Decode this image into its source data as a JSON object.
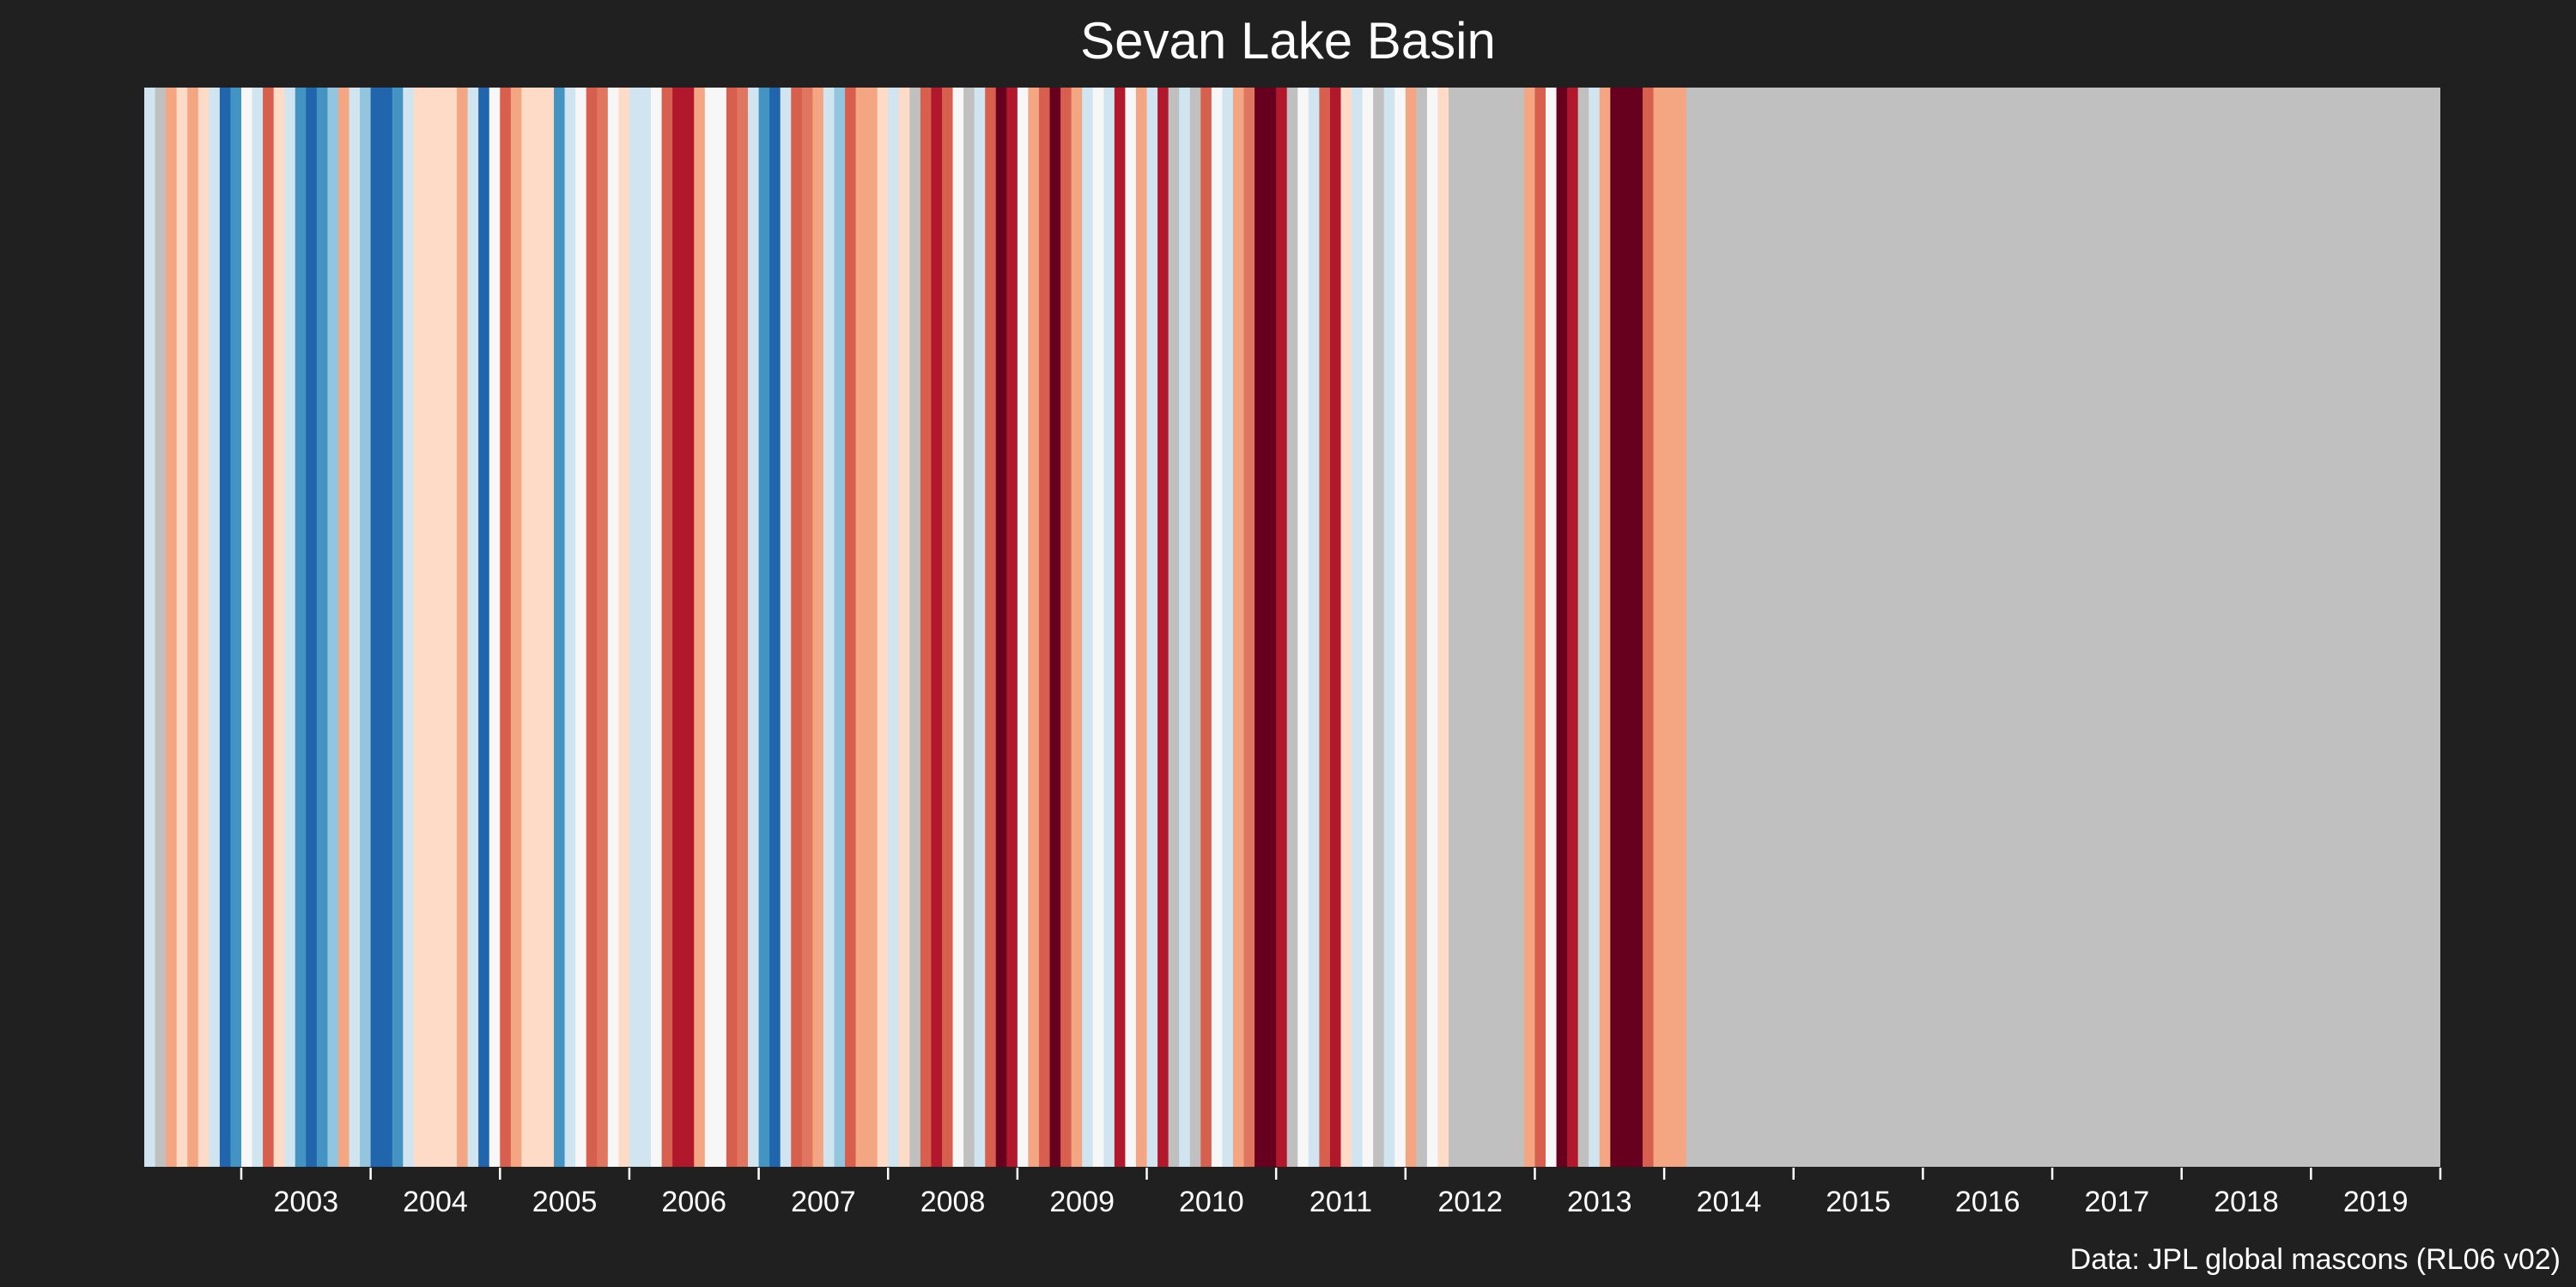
{
  "chart_data": {
    "type": "heatmap",
    "title": "Sevan Lake Basin",
    "xlabel": "",
    "ylabel": "",
    "x_range": [
      "2002-04",
      "2020-01"
    ],
    "x_ticks": [
      "2003",
      "2004",
      "2005",
      "2006",
      "2007",
      "2008",
      "2009",
      "2010",
      "2011",
      "2012",
      "2013",
      "2014",
      "2015",
      "2016",
      "2017",
      "2018",
      "2019"
    ],
    "grid": false,
    "legend": "none",
    "colormap": "RdBu (blue = positive anomaly, red = negative anomaly, grey = no data)",
    "stripes": [
      {
        "date": "2002-04",
        "color": "#d1e5f0"
      },
      {
        "date": "2002-05",
        "color": "#c0c0c0"
      },
      {
        "date": "2002-06",
        "color": "#f4a582"
      },
      {
        "date": "2002-07",
        "color": "#fddbc7"
      },
      {
        "date": "2002-08",
        "color": "#f4a582"
      },
      {
        "date": "2002-09",
        "color": "#fddbc7"
      },
      {
        "date": "2002-10",
        "color": "#d1e5f0"
      },
      {
        "date": "2002-11",
        "color": "#2166ac"
      },
      {
        "date": "2002-12",
        "color": "#4393c3"
      },
      {
        "date": "2003-01",
        "color": "#f7f7f7"
      },
      {
        "date": "2003-02",
        "color": "#d1e5f0"
      },
      {
        "date": "2003-03",
        "color": "#d6604d"
      },
      {
        "date": "2003-04",
        "color": "#fddbc7"
      },
      {
        "date": "2003-05",
        "color": "#d1e5f0"
      },
      {
        "date": "2003-06",
        "color": "#4393c3"
      },
      {
        "date": "2003-07",
        "color": "#2166ac"
      },
      {
        "date": "2003-08",
        "color": "#4393c3"
      },
      {
        "date": "2003-09",
        "color": "#92c5de"
      },
      {
        "date": "2003-10",
        "color": "#f4a582"
      },
      {
        "date": "2003-11",
        "color": "#d1e5f0"
      },
      {
        "date": "2003-12",
        "color": "#92c5de"
      },
      {
        "date": "2004-01",
        "color": "#2166ac"
      },
      {
        "date": "2004-02",
        "color": "#2166ac"
      },
      {
        "date": "2004-03",
        "color": "#4393c3"
      },
      {
        "date": "2004-04",
        "color": "#d1e5f0"
      },
      {
        "date": "2004-05",
        "color": "#fddbc7"
      },
      {
        "date": "2004-06",
        "color": "#fddbc7"
      },
      {
        "date": "2004-07",
        "color": "#fddbc7"
      },
      {
        "date": "2004-08",
        "color": "#fddbc7"
      },
      {
        "date": "2004-09",
        "color": "#f4a582"
      },
      {
        "date": "2004-10",
        "color": "#d1e5f0"
      },
      {
        "date": "2004-11",
        "color": "#2166ac"
      },
      {
        "date": "2004-12",
        "color": "#f7f7f7"
      },
      {
        "date": "2005-01",
        "color": "#d6604d"
      },
      {
        "date": "2005-02",
        "color": "#f4a582"
      },
      {
        "date": "2005-03",
        "color": "#fddbc7"
      },
      {
        "date": "2005-04",
        "color": "#fddbc7"
      },
      {
        "date": "2005-05",
        "color": "#fddbc7"
      },
      {
        "date": "2005-06",
        "color": "#4393c3"
      },
      {
        "date": "2005-07",
        "color": "#d1e5f0"
      },
      {
        "date": "2005-08",
        "color": "#f7f7f7"
      },
      {
        "date": "2005-09",
        "color": "#d6604d"
      },
      {
        "date": "2005-10",
        "color": "#e0765f"
      },
      {
        "date": "2005-11",
        "color": "#f7f7f7"
      },
      {
        "date": "2005-12",
        "color": "#fddbc7"
      },
      {
        "date": "2006-01",
        "color": "#d1e5f0"
      },
      {
        "date": "2006-02",
        "color": "#d1e5f0"
      },
      {
        "date": "2006-03",
        "color": "#f7f7f7"
      },
      {
        "date": "2006-04",
        "color": "#d6604d"
      },
      {
        "date": "2006-05",
        "color": "#b2182b"
      },
      {
        "date": "2006-06",
        "color": "#b2182b"
      },
      {
        "date": "2006-07",
        "color": "#f4a582"
      },
      {
        "date": "2006-08",
        "color": "#f7f7f7"
      },
      {
        "date": "2006-09",
        "color": "#f7f7f7"
      },
      {
        "date": "2006-10",
        "color": "#d6604d"
      },
      {
        "date": "2006-11",
        "color": "#e0765f"
      },
      {
        "date": "2006-12",
        "color": "#d1e5f0"
      },
      {
        "date": "2007-01",
        "color": "#4393c3"
      },
      {
        "date": "2007-02",
        "color": "#2166ac"
      },
      {
        "date": "2007-03",
        "color": "#d1e5f0"
      },
      {
        "date": "2007-04",
        "color": "#d6604d"
      },
      {
        "date": "2007-05",
        "color": "#e0765f"
      },
      {
        "date": "2007-06",
        "color": "#f4a582"
      },
      {
        "date": "2007-07",
        "color": "#d1e5f0"
      },
      {
        "date": "2007-08",
        "color": "#92c5de"
      },
      {
        "date": "2007-09",
        "color": "#d6604d"
      },
      {
        "date": "2007-10",
        "color": "#f4a582"
      },
      {
        "date": "2007-11",
        "color": "#f4a582"
      },
      {
        "date": "2007-12",
        "color": "#fddbc7"
      },
      {
        "date": "2008-01",
        "color": "#d1e5f0"
      },
      {
        "date": "2008-02",
        "color": "#fddbc7"
      },
      {
        "date": "2008-03",
        "color": "#c0c0c0"
      },
      {
        "date": "2008-04",
        "color": "#d6604d"
      },
      {
        "date": "2008-05",
        "color": "#b2182b"
      },
      {
        "date": "2008-06",
        "color": "#d6604d"
      },
      {
        "date": "2008-07",
        "color": "#f7f7f7"
      },
      {
        "date": "2008-08",
        "color": "#c0c0c0"
      },
      {
        "date": "2008-09",
        "color": "#d1e5f0"
      },
      {
        "date": "2008-10",
        "color": "#d6604d"
      },
      {
        "date": "2008-11",
        "color": "#67001f"
      },
      {
        "date": "2008-12",
        "color": "#b2182b"
      },
      {
        "date": "2009-01",
        "color": "#f7f7f7"
      },
      {
        "date": "2009-02",
        "color": "#f4a582"
      },
      {
        "date": "2009-03",
        "color": "#d6604d"
      },
      {
        "date": "2009-04",
        "color": "#67001f"
      },
      {
        "date": "2009-05",
        "color": "#d6604d"
      },
      {
        "date": "2009-06",
        "color": "#f4a582"
      },
      {
        "date": "2009-07",
        "color": "#d1e5f0"
      },
      {
        "date": "2009-08",
        "color": "#f7f7f7"
      },
      {
        "date": "2009-09",
        "color": "#d1e5f0"
      },
      {
        "date": "2009-10",
        "color": "#b2182b"
      },
      {
        "date": "2009-11",
        "color": "#f7f7f7"
      },
      {
        "date": "2009-12",
        "color": "#f4a582"
      },
      {
        "date": "2010-01",
        "color": "#d1e5f0"
      },
      {
        "date": "2010-02",
        "color": "#b2182b"
      },
      {
        "date": "2010-03",
        "color": "#c0c0c0"
      },
      {
        "date": "2010-04",
        "color": "#d1e5f0"
      },
      {
        "date": "2010-05",
        "color": "#c0c0c0"
      },
      {
        "date": "2010-06",
        "color": "#d6604d"
      },
      {
        "date": "2010-07",
        "color": "#f7f7f7"
      },
      {
        "date": "2010-08",
        "color": "#d1e5f0"
      },
      {
        "date": "2010-09",
        "color": "#f4a582"
      },
      {
        "date": "2010-10",
        "color": "#e0765f"
      },
      {
        "date": "2010-11",
        "color": "#67001f"
      },
      {
        "date": "2010-12",
        "color": "#67001f"
      },
      {
        "date": "2011-01",
        "color": "#b2182b"
      },
      {
        "date": "2011-02",
        "color": "#c0c0c0"
      },
      {
        "date": "2011-03",
        "color": "#f7f7f7"
      },
      {
        "date": "2011-04",
        "color": "#d1e5f0"
      },
      {
        "date": "2011-05",
        "color": "#d6604d"
      },
      {
        "date": "2011-06",
        "color": "#b2182b"
      },
      {
        "date": "2011-07",
        "color": "#fddbc7"
      },
      {
        "date": "2011-08",
        "color": "#d1e5f0"
      },
      {
        "date": "2011-09",
        "color": "#f7f7f7"
      },
      {
        "date": "2011-10",
        "color": "#c0c0c0"
      },
      {
        "date": "2011-11",
        "color": "#d1e5f0"
      },
      {
        "date": "2011-12",
        "color": "#f7f7f7"
      },
      {
        "date": "2012-01",
        "color": "#f4a582"
      },
      {
        "date": "2012-02",
        "color": "#c0c0c0"
      },
      {
        "date": "2012-03",
        "color": "#f7f7f7"
      },
      {
        "date": "2012-04",
        "color": "#fddbc7"
      },
      {
        "date": "2012-05",
        "color": "#c0c0c0"
      },
      {
        "date": "2012-06",
        "color": "#c0c0c0"
      },
      {
        "date": "2012-07",
        "color": "#c0c0c0"
      },
      {
        "date": "2012-08",
        "color": "#c0c0c0"
      },
      {
        "date": "2012-09",
        "color": "#c0c0c0"
      },
      {
        "date": "2012-10",
        "color": "#c0c0c0"
      },
      {
        "date": "2012-11",
        "color": "#c0c0c0"
      },
      {
        "date": "2012-12",
        "color": "#f4a582"
      },
      {
        "date": "2013-01",
        "color": "#d6604d"
      },
      {
        "date": "2013-02",
        "color": "#f7f7f7"
      },
      {
        "date": "2013-03",
        "color": "#67001f"
      },
      {
        "date": "2013-04",
        "color": "#b2182b"
      },
      {
        "date": "2013-05",
        "color": "#c0c0c0"
      },
      {
        "date": "2013-06",
        "color": "#d1e5f0"
      },
      {
        "date": "2013-07",
        "color": "#f4a582"
      },
      {
        "date": "2013-08",
        "color": "#67001f"
      },
      {
        "date": "2013-09",
        "color": "#67001f"
      },
      {
        "date": "2013-10",
        "color": "#67001f"
      },
      {
        "date": "2013-11",
        "color": "#d6604d"
      },
      {
        "date": "2013-12",
        "color": "#f4a582"
      },
      {
        "date": "2014-01",
        "color": "#f4a582"
      },
      {
        "date": "2014-02",
        "color": "#f4a582"
      }
    ]
  },
  "footer": {
    "credit": "Data: JPL global mascons (RL06 v02)"
  }
}
